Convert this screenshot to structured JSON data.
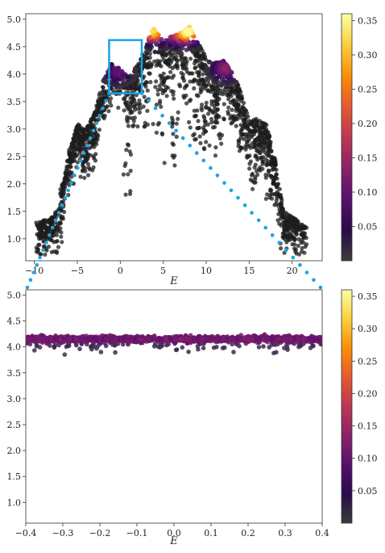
{
  "colormap": {
    "name": "inferno",
    "stops": [
      "#3b3b3b",
      "#2a0a4a",
      "#57106e",
      "#8a226a",
      "#bc3754",
      "#e45a31",
      "#f98e09",
      "#f9d03e",
      "#fcffa4"
    ]
  },
  "highlight": {
    "box_color": "#1aa3e8",
    "dot_color": "#1aa3e8"
  },
  "chart_data": [
    {
      "type": "scatter",
      "title": "",
      "xlabel": "E",
      "ylabel": "",
      "xlim": [
        -11,
        23.5
      ],
      "ylim": [
        0.6,
        5.1
      ],
      "xticks": [
        -10,
        -5,
        0,
        5,
        10,
        15,
        20
      ],
      "xtick_labels": [
        "−10",
        "−5",
        "0",
        "5",
        "10",
        "15",
        "20"
      ],
      "yticks": [
        1.0,
        1.5,
        2.0,
        2.5,
        3.0,
        3.5,
        4.0,
        4.5,
        5.0
      ],
      "ytick_labels": [
        "1.0",
        "1.5",
        "2.0",
        "2.5",
        "3.0",
        "3.5",
        "4.0",
        "4.5",
        "5.0"
      ],
      "colorbar": {
        "range": [
          0,
          0.36
        ],
        "ticks": [
          0.05,
          0.1,
          0.15,
          0.2,
          0.25,
          0.3,
          0.35
        ],
        "tick_labels": [
          "0.05",
          "0.10",
          "0.15",
          "0.20",
          "0.25",
          "0.30",
          "0.35"
        ]
      },
      "density_peaks": [
        {
          "x": 3.8,
          "y": 4.78,
          "value": 0.33
        },
        {
          "x": 6.5,
          "y": 4.7,
          "value": 0.12
        },
        {
          "x": 8.0,
          "y": 4.78,
          "value": 0.34
        },
        {
          "x": -0.2,
          "y": 4.05,
          "value": 0.1
        },
        {
          "x": 12.2,
          "y": 4.1,
          "value": 0.14
        }
      ],
      "zoom_box": {
        "x0": -1.3,
        "x1": 2.5,
        "y0": 3.65,
        "y1": 4.62
      }
    },
    {
      "type": "scatter",
      "title": "",
      "xlabel": "E",
      "ylabel": "",
      "xlim": [
        -0.4,
        0.4
      ],
      "ylim": [
        0.6,
        5.1
      ],
      "xticks": [
        -0.4,
        -0.3,
        -0.2,
        -0.1,
        0.0,
        0.1,
        0.2,
        0.3,
        0.4
      ],
      "xtick_labels": [
        "−0.4",
        "−0.3",
        "−0.2",
        "−0.1",
        "0.0",
        "0.1",
        "0.2",
        "0.3",
        "0.4"
      ],
      "yticks": [
        1.0,
        1.5,
        2.0,
        2.5,
        3.0,
        3.5,
        4.0,
        4.5,
        5.0
      ],
      "ytick_labels": [
        "1.0",
        "1.5",
        "2.0",
        "2.5",
        "3.0",
        "3.5",
        "4.0",
        "4.5",
        "5.0"
      ],
      "colorbar": {
        "range": [
          0,
          0.36
        ],
        "ticks": [
          0.05,
          0.1,
          0.15,
          0.2,
          0.25,
          0.3,
          0.35
        ],
        "tick_labels": [
          "0.05",
          "0.10",
          "0.15",
          "0.20",
          "0.25",
          "0.30",
          "0.35"
        ]
      },
      "band": {
        "y_center": 4.15,
        "y_spread": 0.05,
        "value": 0.11
      }
    }
  ]
}
